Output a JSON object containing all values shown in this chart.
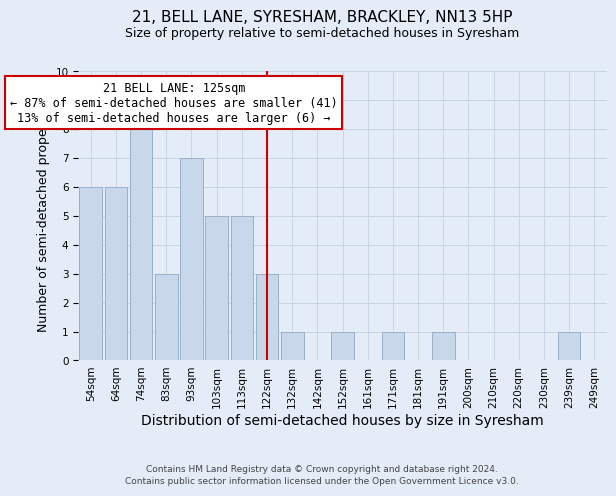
{
  "title": "21, BELL LANE, SYRESHAM, BRACKLEY, NN13 5HP",
  "subtitle": "Size of property relative to semi-detached houses in Syresham",
  "xlabel": "Distribution of semi-detached houses by size in Syresham",
  "ylabel": "Number of semi-detached properties",
  "bin_labels": [
    "54sqm",
    "64sqm",
    "74sqm",
    "83sqm",
    "93sqm",
    "103sqm",
    "113sqm",
    "122sqm",
    "132sqm",
    "142sqm",
    "152sqm",
    "161sqm",
    "171sqm",
    "181sqm",
    "191sqm",
    "200sqm",
    "210sqm",
    "220sqm",
    "230sqm",
    "239sqm",
    "249sqm"
  ],
  "bar_heights": [
    6,
    6,
    8,
    3,
    7,
    5,
    5,
    3,
    1,
    0,
    1,
    0,
    1,
    0,
    1,
    0,
    0,
    0,
    0,
    1,
    0
  ],
  "bar_color": "#c8d8ea",
  "bar_edge_color": "#9ab0c8",
  "vline_x_index": 7,
  "vline_color": "#cc0000",
  "ylim": [
    0,
    10
  ],
  "yticks": [
    0,
    1,
    2,
    3,
    4,
    5,
    6,
    7,
    8,
    9,
    10
  ],
  "annotation_title": "21 BELL LANE: 125sqm",
  "annotation_line1": "← 87% of semi-detached houses are smaller (41)",
  "annotation_line2": "13% of semi-detached houses are larger (6) →",
  "annotation_box_color": "#ffffff",
  "annotation_border_color": "#cc0000",
  "grid_color": "#c8d4e4",
  "bg_color": "#e4ecf8",
  "footer1": "Contains HM Land Registry data © Crown copyright and database right 2024.",
  "footer2": "Contains public sector information licensed under the Open Government Licence v3.0.",
  "title_fontsize": 11,
  "subtitle_fontsize": 9,
  "xlabel_fontsize": 10,
  "ylabel_fontsize": 9,
  "tick_fontsize": 7.5,
  "annotation_fontsize": 8.5,
  "footer_fontsize": 6.5
}
